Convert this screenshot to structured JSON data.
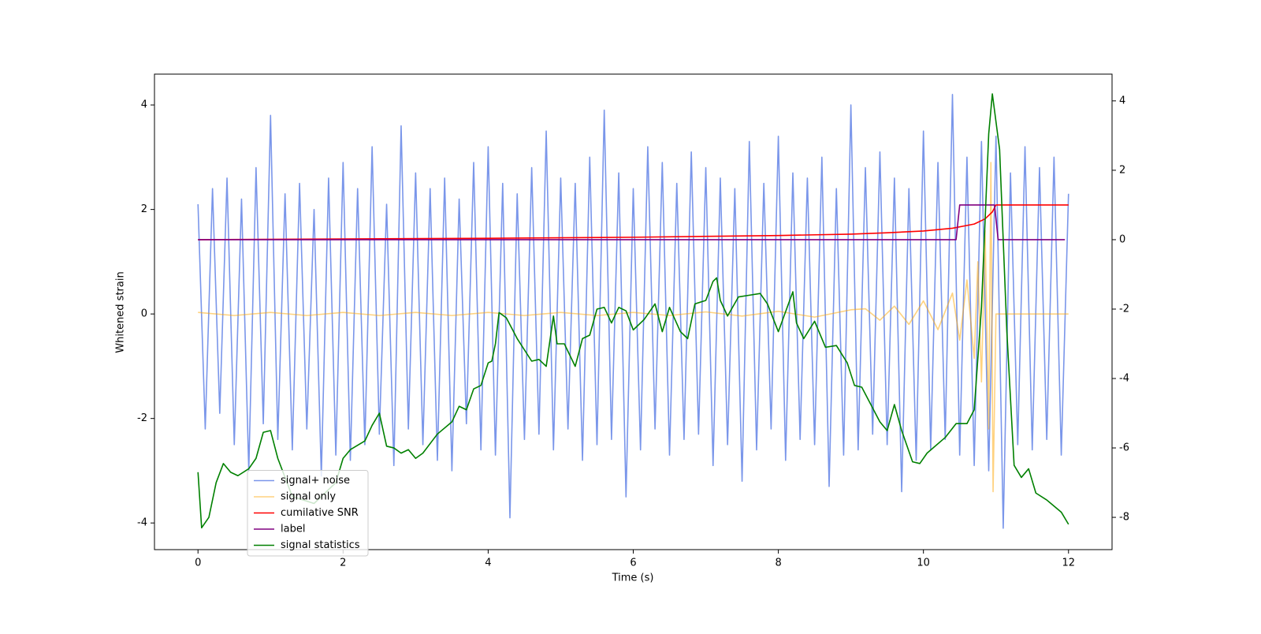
{
  "chart_data": {
    "type": "line",
    "xlabel": "Time (s)",
    "ylabel": "Whitened strain",
    "xlim": [
      -0.6,
      12.6
    ],
    "xticks": [
      0,
      2,
      4,
      6,
      8,
      10,
      12
    ],
    "ylim": [
      -4.51,
      4.59
    ],
    "yticks": [
      -4,
      -2,
      0,
      2,
      4
    ],
    "y2lim": [
      -8.93,
      4.77
    ],
    "y2ticks": [
      -8,
      -6,
      -4,
      -2,
      0,
      2,
      4
    ],
    "legend": "lower left",
    "series": [
      {
        "name": "signal+ noise",
        "color": "royalblue",
        "alpha": 0.7,
        "axis": "y",
        "x": [
          0,
          0.1,
          0.2,
          0.3,
          0.4,
          0.5,
          0.6,
          0.7,
          0.8,
          0.9,
          1,
          1.1,
          1.2,
          1.3,
          1.4,
          1.5,
          1.6,
          1.7,
          1.8,
          1.9,
          2,
          2.1,
          2.2,
          2.3,
          2.4,
          2.5,
          2.6,
          2.7,
          2.8,
          2.9,
          3,
          3.1,
          3.2,
          3.3,
          3.4,
          3.5,
          3.6,
          3.7,
          3.8,
          3.9,
          4,
          4.1,
          4.2,
          4.3,
          4.4,
          4.5,
          4.6,
          4.7,
          4.8,
          4.9,
          5,
          5.1,
          5.2,
          5.3,
          5.4,
          5.5,
          5.6,
          5.7,
          5.8,
          5.9,
          6,
          6.1,
          6.2,
          6.3,
          6.4,
          6.5,
          6.6,
          6.7,
          6.8,
          6.9,
          7,
          7.1,
          7.2,
          7.3,
          7.4,
          7.5,
          7.6,
          7.7,
          7.8,
          7.9,
          8,
          8.1,
          8.2,
          8.3,
          8.4,
          8.5,
          8.6,
          8.7,
          8.8,
          8.9,
          9,
          9.1,
          9.2,
          9.3,
          9.4,
          9.5,
          9.6,
          9.7,
          9.8,
          9.9,
          10,
          10.1,
          10.2,
          10.3,
          10.4,
          10.5,
          10.6,
          10.7,
          10.8,
          10.9,
          11,
          11.1,
          11.2,
          11.3,
          11.4,
          11.5,
          11.6,
          11.7,
          11.8,
          11.9,
          12
        ],
        "values": [
          2.1,
          -2.2,
          2.4,
          -1.9,
          2.6,
          -2.5,
          2.2,
          -3.0,
          2.8,
          -2.1,
          3.8,
          -2.4,
          2.3,
          -2.6,
          2.5,
          -2.2,
          2.0,
          -3.1,
          2.6,
          -2.7,
          2.9,
          -2.8,
          2.4,
          -2.5,
          3.2,
          -2.3,
          2.1,
          -2.9,
          3.6,
          -2.2,
          2.7,
          -2.5,
          2.4,
          -2.8,
          2.6,
          -3.0,
          2.2,
          -2.1,
          2.9,
          -2.6,
          3.2,
          -2.7,
          2.5,
          -3.9,
          2.3,
          -2.4,
          2.8,
          -2.3,
          3.5,
          -2.6,
          2.6,
          -2.2,
          2.5,
          -2.8,
          3.0,
          -2.5,
          3.9,
          -2.4,
          2.7,
          -3.5,
          2.4,
          -2.6,
          3.2,
          -2.2,
          2.9,
          -2.7,
          2.5,
          -2.4,
          3.1,
          -2.3,
          2.8,
          -2.9,
          2.6,
          -2.5,
          2.4,
          -3.2,
          3.3,
          -2.6,
          2.5,
          -2.2,
          3.4,
          -2.8,
          2.7,
          -2.4,
          2.6,
          -2.5,
          3.0,
          -3.3,
          2.4,
          -2.7,
          4.0,
          -2.6,
          2.8,
          -2.3,
          3.1,
          -2.5,
          2.6,
          -3.4,
          2.4,
          -2.8,
          3.5,
          -2.6,
          2.9,
          -2.4,
          4.2,
          -2.7,
          3.0,
          -2.9,
          3.3,
          -3.0,
          3.4,
          -4.1,
          2.7,
          -2.5,
          3.2,
          -2.6,
          2.8,
          -2.4,
          3.0,
          -2.7,
          2.3
        ]
      },
      {
        "name": "signal only",
        "color": "orange",
        "alpha": 0.5,
        "axis": "y",
        "x": [
          0,
          0.5,
          1,
          1.5,
          2,
          2.5,
          3,
          3.5,
          4,
          4.5,
          5,
          5.5,
          6,
          6.5,
          7,
          7.5,
          8,
          8.5,
          9,
          9.2,
          9.4,
          9.6,
          9.8,
          10,
          10.2,
          10.4,
          10.5,
          10.6,
          10.7,
          10.75,
          10.8,
          10.85,
          10.9,
          10.93,
          10.96,
          11,
          12
        ],
        "values": [
          0.03,
          -0.03,
          0.03,
          -0.03,
          0.03,
          -0.03,
          0.03,
          -0.03,
          0.03,
          -0.03,
          0.03,
          -0.03,
          0.03,
          -0.03,
          0.04,
          -0.04,
          0.05,
          -0.06,
          0.08,
          0.1,
          -0.12,
          0.15,
          -0.2,
          0.25,
          -0.3,
          0.4,
          -0.5,
          0.65,
          -0.85,
          1.0,
          -1.3,
          1.6,
          -2.2,
          2.9,
          -3.4,
          0,
          0
        ]
      },
      {
        "name": "cumilative SNR",
        "color": "red",
        "alpha": 1,
        "axis": "y2",
        "x": [
          0,
          2,
          4,
          6,
          8,
          9,
          9.5,
          10,
          10.4,
          10.7,
          10.85,
          10.95,
          11,
          12
        ],
        "values": [
          0,
          0.02,
          0.04,
          0.07,
          0.12,
          0.16,
          0.2,
          0.25,
          0.33,
          0.45,
          0.6,
          0.8,
          1.0,
          1.0
        ]
      },
      {
        "name": "label",
        "color": "purple",
        "alpha": 1,
        "axis": "y2",
        "x": [
          0,
          10.45,
          10.5,
          10.98,
          11.03,
          11.95
        ],
        "values": [
          0,
          0,
          1,
          1,
          0,
          0
        ]
      },
      {
        "name": "signal statistics",
        "color": "green",
        "alpha": 1,
        "axis": "y2",
        "x": [
          0,
          0.05,
          0.15,
          0.25,
          0.35,
          0.45,
          0.55,
          0.7,
          0.8,
          0.9,
          1.0,
          1.1,
          1.3,
          1.6,
          1.9,
          2.0,
          2.1,
          2.3,
          2.4,
          2.5,
          2.6,
          2.7,
          2.8,
          2.9,
          3.0,
          3.1,
          3.3,
          3.5,
          3.6,
          3.7,
          3.8,
          3.9,
          4.0,
          4.05,
          4.1,
          4.15,
          4.25,
          4.4,
          4.6,
          4.7,
          4.8,
          4.9,
          4.95,
          5.05,
          5.2,
          5.3,
          5.4,
          5.5,
          5.6,
          5.7,
          5.8,
          5.9,
          6.0,
          6.15,
          6.3,
          6.4,
          6.5,
          6.65,
          6.75,
          6.85,
          7.0,
          7.1,
          7.15,
          7.2,
          7.3,
          7.45,
          7.6,
          7.75,
          7.85,
          8.0,
          8.2,
          8.25,
          8.35,
          8.5,
          8.65,
          8.8,
          8.95,
          9.05,
          9.15,
          9.4,
          9.5,
          9.6,
          9.7,
          9.85,
          9.95,
          10.05,
          10.3,
          10.45,
          10.6,
          10.7,
          10.8,
          10.9,
          10.95,
          11.05,
          11.15,
          11.25,
          11.35,
          11.45,
          11.55,
          11.7,
          11.9,
          12.0
        ],
        "values": [
          -6.7,
          -8.3,
          -8.0,
          -7.0,
          -6.45,
          -6.7,
          -6.8,
          -6.6,
          -6.3,
          -5.55,
          -5.5,
          -6.3,
          -7.4,
          -7.6,
          -7.0,
          -6.3,
          -6.05,
          -5.8,
          -5.35,
          -5.0,
          -5.95,
          -6.0,
          -6.15,
          -6.05,
          -6.3,
          -6.15,
          -5.6,
          -5.25,
          -4.8,
          -4.9,
          -4.3,
          -4.2,
          -3.55,
          -3.5,
          -3.0,
          -2.1,
          -2.25,
          -2.85,
          -3.5,
          -3.45,
          -3.65,
          -2.2,
          -3.0,
          -3.0,
          -3.65,
          -2.85,
          -2.75,
          -2.0,
          -1.95,
          -2.4,
          -1.95,
          -2.05,
          -2.6,
          -2.3,
          -1.85,
          -2.65,
          -1.95,
          -2.65,
          -2.85,
          -1.85,
          -1.75,
          -1.2,
          -1.1,
          -1.75,
          -2.2,
          -1.65,
          -1.6,
          -1.55,
          -1.85,
          -2.65,
          -1.5,
          -2.4,
          -2.85,
          -2.35,
          -3.1,
          -3.05,
          -3.55,
          -4.2,
          -4.25,
          -5.25,
          -5.5,
          -4.75,
          -5.5,
          -6.4,
          -6.45,
          -6.15,
          -5.7,
          -5.3,
          -5.3,
          -4.9,
          -1.95,
          3.05,
          4.2,
          2.6,
          -2.65,
          -6.5,
          -6.85,
          -6.6,
          -7.3,
          -7.5,
          -7.85,
          -8.2
        ]
      }
    ]
  }
}
